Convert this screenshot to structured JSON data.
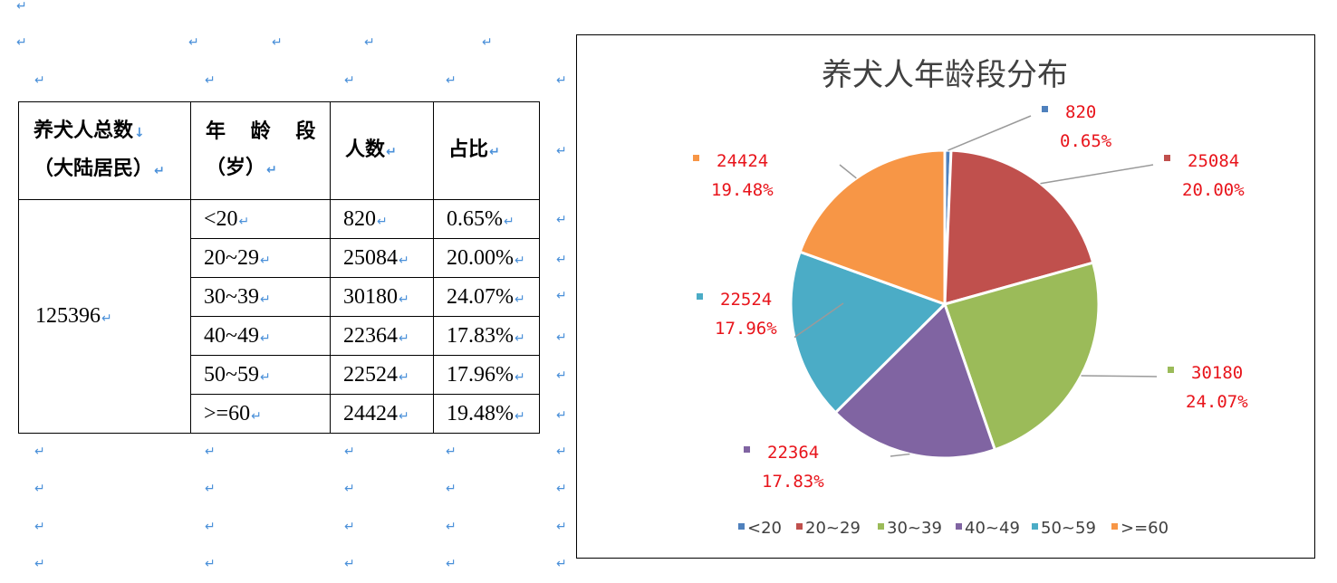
{
  "table": {
    "headers": {
      "total_line1": "养犬人总数",
      "total_line2": "（大陆居民）",
      "age_line1": "年 龄 段",
      "age_line2": "（岁）",
      "count": "人数",
      "ratio": "占比"
    },
    "total": "125396",
    "rows": [
      {
        "age": "<20",
        "count": "820",
        "ratio": "0.65%"
      },
      {
        "age": "20~29",
        "count": "25084",
        "ratio": "20.00%"
      },
      {
        "age": "30~39",
        "count": "30180",
        "ratio": "24.07%"
      },
      {
        "age": "40~49",
        "count": "22364",
        "ratio": "17.83%"
      },
      {
        "age": "50~59",
        "count": "22524",
        "ratio": "17.96%"
      },
      {
        "age": ">=60",
        "count": "24424",
        "ratio": "19.48%"
      }
    ]
  },
  "chart_data": {
    "type": "pie",
    "title": "养犬人年龄段分布",
    "categories": [
      "<20",
      "20~29",
      "30~39",
      "40~49",
      "50~59",
      ">=60"
    ],
    "values": [
      820,
      25084,
      30180,
      22364,
      22524,
      24424
    ],
    "percent_labels": [
      "0.65%",
      "20.00%",
      "24.07%",
      "17.83%",
      "17.96%",
      "19.48%"
    ],
    "legend_labels": [
      "<20",
      "20~29",
      "30~39",
      "40~49",
      "50~59",
      ">=60"
    ],
    "colors": [
      "#4f81bd",
      "#c0504d",
      "#9bbb59",
      "#8064a2",
      "#4bacc6",
      "#f79646"
    ],
    "label_color": "#e8141b",
    "legend_position": "bottom"
  }
}
